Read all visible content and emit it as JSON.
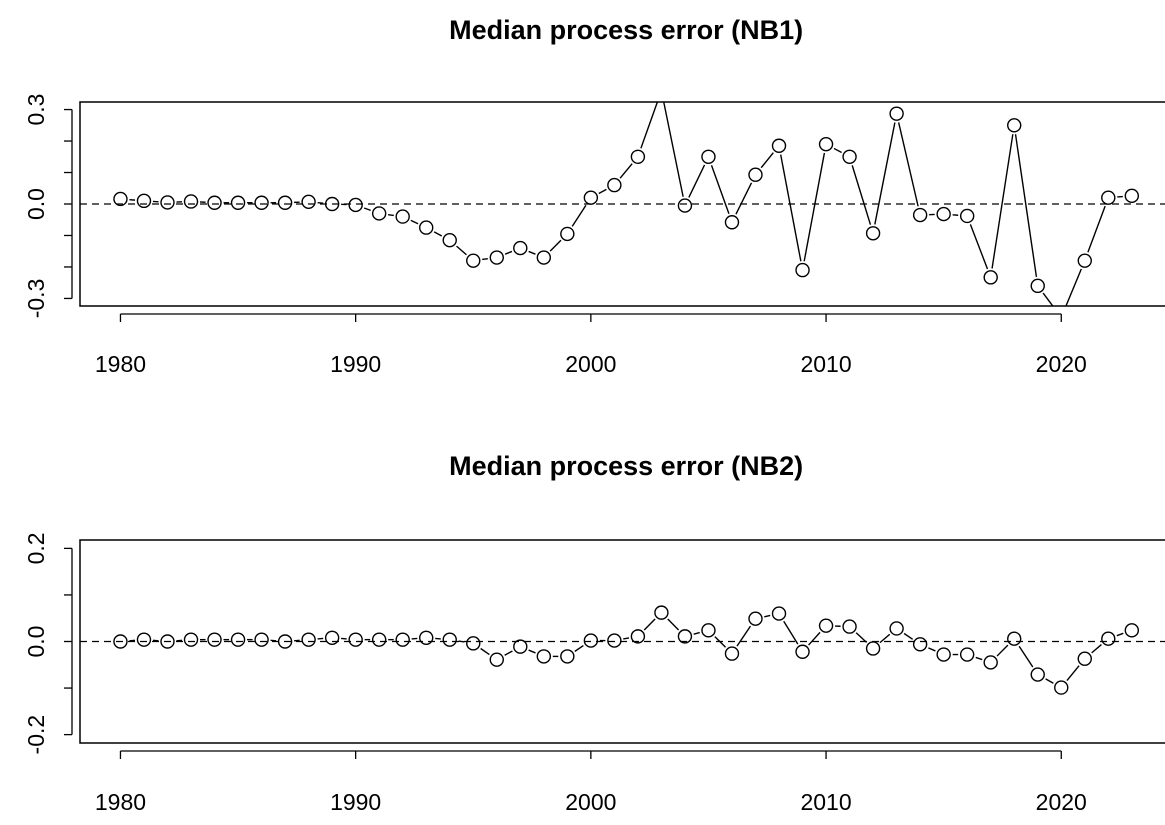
{
  "chart_data": [
    {
      "type": "line",
      "title": "Median process error (NB1)",
      "x": [
        1980,
        1981,
        1982,
        1983,
        1984,
        1985,
        1986,
        1987,
        1988,
        1989,
        1990,
        1991,
        1992,
        1993,
        1994,
        1995,
        1996,
        1997,
        1998,
        1999,
        2000,
        2001,
        2002,
        2003,
        2004,
        2005,
        2006,
        2007,
        2008,
        2009,
        2010,
        2011,
        2012,
        2013,
        2014,
        2015,
        2016,
        2017,
        2018,
        2019,
        2020,
        2021,
        2022,
        2023
      ],
      "values": [
        0.016,
        0.01,
        0.005,
        0.008,
        0.004,
        0.004,
        0.004,
        0.004,
        0.007,
        0.0,
        -0.003,
        -0.03,
        -0.04,
        -0.075,
        -0.115,
        -0.18,
        -0.17,
        -0.14,
        -0.17,
        -0.095,
        0.02,
        0.06,
        0.15,
        0.36,
        -0.005,
        0.15,
        -0.058,
        0.093,
        0.185,
        -0.21,
        0.19,
        0.15,
        -0.093,
        0.287,
        -0.035,
        -0.032,
        -0.038,
        -0.233,
        0.25,
        -0.26,
        -0.36,
        -0.18,
        0.02,
        0.026
      ],
      "color": "#000000",
      "marker": "circle",
      "xlim": [
        1978.28,
        2024.72
      ],
      "xticks": [
        1980,
        1990,
        2000,
        2010,
        2020
      ],
      "ylim": [
        -0.324,
        0.324
      ],
      "yticks": [
        -0.3,
        {
          "value": -0.2,
          "label": null
        },
        {
          "value": -0.1,
          "label": null
        },
        {
          "value": 0,
          "label": "0.0"
        },
        {
          "value": 0.1,
          "label": null
        },
        {
          "value": 0.2,
          "label": null
        },
        0.3
      ],
      "reference_line": 0
    },
    {
      "type": "line",
      "title": "Median process error (NB2)",
      "x": [
        1980,
        1981,
        1982,
        1983,
        1984,
        1985,
        1986,
        1987,
        1988,
        1989,
        1990,
        1991,
        1992,
        1993,
        1994,
        1995,
        1996,
        1997,
        1998,
        1999,
        2000,
        2001,
        2002,
        2003,
        2004,
        2005,
        2006,
        2007,
        2008,
        2009,
        2010,
        2011,
        2012,
        2013,
        2014,
        2015,
        2016,
        2017,
        2018,
        2019,
        2020,
        2021,
        2022,
        2023
      ],
      "values": [
        0,
        0.004,
        0,
        0.004,
        0.004,
        0.004,
        0.004,
        0,
        0.004,
        0.008,
        0.004,
        0.004,
        0.004,
        0.008,
        0.004,
        -0.004,
        -0.039,
        -0.011,
        -0.032,
        -0.032,
        0.002,
        0.002,
        0.011,
        0.062,
        0.011,
        0.024,
        -0.026,
        0.049,
        0.06,
        -0.022,
        0.034,
        0.032,
        -0.015,
        0.028,
        -0.006,
        -0.028,
        -0.028,
        -0.045,
        0.006,
        -0.071,
        -0.099,
        -0.037,
        0.006,
        0.024
      ],
      "color": "#000000",
      "marker": "circle",
      "xlim": [
        1978.28,
        2024.72
      ],
      "xticks": [
        1980,
        1990,
        2000,
        2010,
        2020
      ],
      "ylim": [
        -0.218,
        0.218
      ],
      "yticks": [
        -0.2,
        {
          "value": -0.1,
          "label": null
        },
        {
          "value": 0,
          "label": "0.0"
        },
        {
          "value": 0.1,
          "label": null
        },
        0.2
      ],
      "reference_line": 0
    }
  ]
}
